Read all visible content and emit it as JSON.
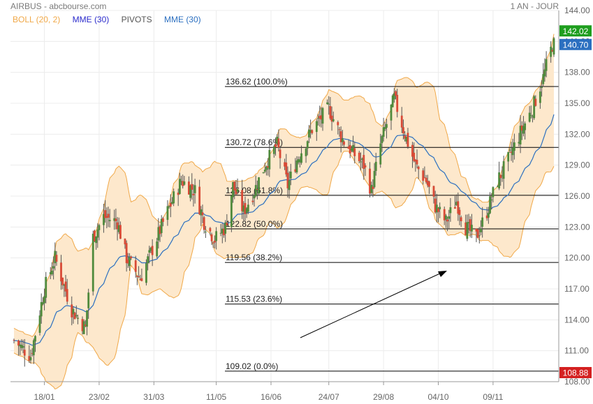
{
  "header": {
    "title": "AIRBUS - abcbourse.com",
    "period": "1 AN - JOUR",
    "legend": [
      {
        "label": "BOLL (20, 2)",
        "color": "#f0a848"
      },
      {
        "label": "MME (30)",
        "color": "#2b2bcc"
      },
      {
        "label": "PIVOTS",
        "color": "#555555"
      },
      {
        "label": "MME (30)",
        "color": "#2b6fc0"
      }
    ]
  },
  "colors": {
    "up": "#4f8a3c",
    "down": "#d84a36",
    "boll_line": "#f0a848",
    "boll_fill": "#fde8cc",
    "mme": "#2b6fc0",
    "pivot_line": "#000000"
  },
  "chart_data": {
    "type": "candlestick",
    "ylim": [
      108,
      144
    ],
    "yticks": [
      "144.00",
      "141.00",
      "138.00",
      "135.00",
      "132.00",
      "129.00",
      "126.00",
      "123.00",
      "120.00",
      "117.00",
      "114.00",
      "111.00",
      "108.00"
    ],
    "xticks": [
      "18/01",
      "23/02",
      "31/03",
      "11/05",
      "16/06",
      "24/07",
      "29/08",
      "04/10",
      "09/11"
    ],
    "price_badges": [
      {
        "value": "142.02",
        "color": "#1e9e1e"
      },
      {
        "value": "140.70",
        "color": "#2b6fc0"
      },
      {
        "value": "108.88",
        "color": "#d42020"
      }
    ],
    "pivots": [
      {
        "value": 136.62,
        "label": "136.62  (100.0%)"
      },
      {
        "value": 130.72,
        "label": "130.72  (78.6%)"
      },
      {
        "value": 126.08,
        "label": "126.08  (61.8%)"
      },
      {
        "value": 122.82,
        "label": "122.82  (50.0%)"
      },
      {
        "value": 119.56,
        "label": "119.56  (38.2%)"
      },
      {
        "value": 115.53,
        "label": "115.53  (23.6%)"
      },
      {
        "value": 109.02,
        "label": "109.02  (0.0%)"
      }
    ],
    "close_anchors": [
      {
        "date": "2017-12-29",
        "close": 112.0
      },
      {
        "date": "2018-01-09",
        "close": 110.5
      },
      {
        "date": "2018-01-18",
        "close": 117.0
      },
      {
        "date": "2018-01-25",
        "close": 120.0
      },
      {
        "date": "2018-02-05",
        "close": 115.0
      },
      {
        "date": "2018-02-14",
        "close": 113.2
      },
      {
        "date": "2018-02-19",
        "close": 122.0
      },
      {
        "date": "2018-02-26",
        "close": 124.0
      },
      {
        "date": "2018-03-07",
        "close": 123.5
      },
      {
        "date": "2018-03-13",
        "close": 120.0
      },
      {
        "date": "2018-03-22",
        "close": 118.0
      },
      {
        "date": "2018-03-29",
        "close": 120.5
      },
      {
        "date": "2018-04-09",
        "close": 124.5
      },
      {
        "date": "2018-04-18",
        "close": 127.5
      },
      {
        "date": "2018-04-27",
        "close": 126.5
      },
      {
        "date": "2018-05-03",
        "close": 123.5
      },
      {
        "date": "2018-05-10",
        "close": 121.8
      },
      {
        "date": "2018-05-17",
        "close": 123.0
      },
      {
        "date": "2018-05-22",
        "close": 127.0
      },
      {
        "date": "2018-05-29",
        "close": 124.5
      },
      {
        "date": "2018-06-05",
        "close": 126.5
      },
      {
        "date": "2018-06-12",
        "close": 129.0
      },
      {
        "date": "2018-06-20",
        "close": 131.0
      },
      {
        "date": "2018-06-27",
        "close": 127.0
      },
      {
        "date": "2018-07-03",
        "close": 129.5
      },
      {
        "date": "2018-07-13",
        "close": 132.5
      },
      {
        "date": "2018-07-24",
        "close": 134.5
      },
      {
        "date": "2018-08-02",
        "close": 131.5
      },
      {
        "date": "2018-08-10",
        "close": 130.0
      },
      {
        "date": "2018-08-16",
        "close": 129.0
      },
      {
        "date": "2018-08-21",
        "close": 126.5
      },
      {
        "date": "2018-08-27",
        "close": 131.0
      },
      {
        "date": "2018-09-05",
        "close": 135.5
      },
      {
        "date": "2018-09-12",
        "close": 132.0
      },
      {
        "date": "2018-09-19",
        "close": 129.0
      },
      {
        "date": "2018-09-26",
        "close": 127.5
      },
      {
        "date": "2018-10-02",
        "close": 125.0
      },
      {
        "date": "2018-10-09",
        "close": 123.5
      },
      {
        "date": "2018-10-16",
        "close": 125.5
      },
      {
        "date": "2018-10-22",
        "close": 123.0
      },
      {
        "date": "2018-10-29",
        "close": 122.0
      },
      {
        "date": "2018-11-05",
        "close": 124.5
      },
      {
        "date": "2018-11-12",
        "close": 127.5
      },
      {
        "date": "2018-11-19",
        "close": 129.5
      },
      {
        "date": "2018-11-28",
        "close": 132.5
      },
      {
        "date": "2018-12-05",
        "close": 134.5
      },
      {
        "date": "2018-12-12",
        "close": 137.5
      },
      {
        "date": "2018-12-18",
        "close": 140.7
      }
    ]
  }
}
